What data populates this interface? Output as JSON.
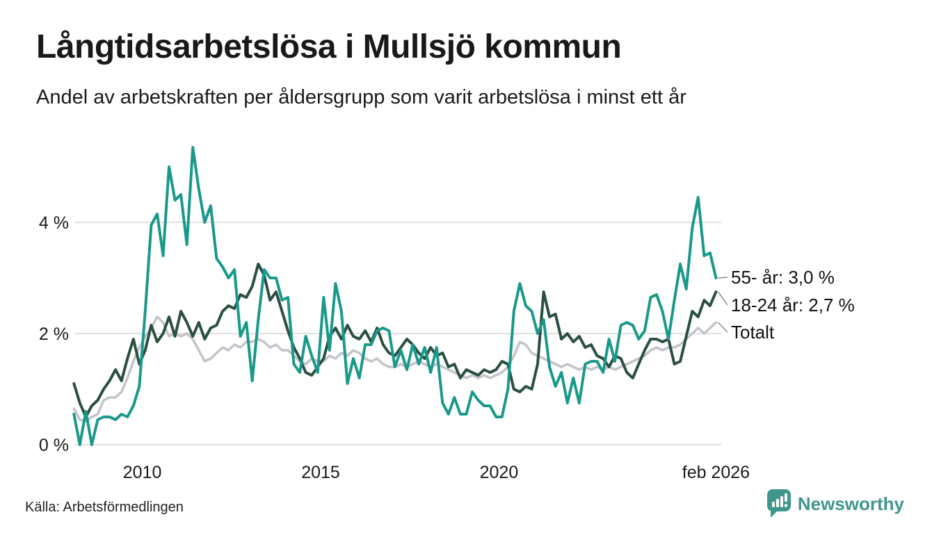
{
  "header": {
    "title": "Långtidsarbetslösa i Mullsjö kommun",
    "subtitle": "Andel av arbetskraften per åldersgrupp som varit arbetslösa i minst ett år"
  },
  "footer": {
    "source": "Källa: Arbetsförmedlingen",
    "brand": "Newsworthy",
    "brand_color": "#3f968d",
    "brand_icon": "newsworthy-speech-bubble-bar-chart-icon"
  },
  "chart_data": {
    "type": "line",
    "title": "Långtidsarbetslösa i Mullsjö kommun",
    "subtitle": "Andel av arbetskraften per åldersgrupp som varit arbetslösa i minst ett år",
    "xlabel": "",
    "ylabel": "",
    "x_unit": "decimal year (monthly data, ~2-month sampling)",
    "y_unit": "% av arbetskraften",
    "grid": true,
    "grid_color": "#e0e0e0",
    "legend_position": "right-end-labels",
    "xlim": [
      2008.0,
      2026.25
    ],
    "ylim": [
      0,
      5.5
    ],
    "yticks": [
      {
        "value": 0,
        "label": "0 %"
      },
      {
        "value": 2,
        "label": "2 %"
      },
      {
        "value": 4,
        "label": "4 %"
      }
    ],
    "xticks": [
      {
        "value": 2010,
        "label": "2010"
      },
      {
        "value": 2015,
        "label": "2015"
      },
      {
        "value": 2020,
        "label": "2020"
      },
      {
        "value": 2026.083,
        "label": "feb 2026"
      }
    ],
    "x": [
      2008.083,
      2008.25,
      2008.417,
      2008.583,
      2008.75,
      2008.917,
      2009.083,
      2009.25,
      2009.417,
      2009.583,
      2009.75,
      2009.917,
      2010.083,
      2010.25,
      2010.417,
      2010.583,
      2010.75,
      2010.917,
      2011.083,
      2011.25,
      2011.417,
      2011.583,
      2011.75,
      2011.917,
      2012.083,
      2012.25,
      2012.417,
      2012.583,
      2012.75,
      2012.917,
      2013.083,
      2013.25,
      2013.417,
      2013.583,
      2013.75,
      2013.917,
      2014.083,
      2014.25,
      2014.417,
      2014.583,
      2014.75,
      2014.917,
      2015.083,
      2015.25,
      2015.417,
      2015.583,
      2015.75,
      2015.917,
      2016.083,
      2016.25,
      2016.417,
      2016.583,
      2016.75,
      2016.917,
      2017.083,
      2017.25,
      2017.417,
      2017.583,
      2017.75,
      2017.917,
      2018.083,
      2018.25,
      2018.417,
      2018.583,
      2018.75,
      2018.917,
      2019.083,
      2019.25,
      2019.417,
      2019.583,
      2019.75,
      2019.917,
      2020.083,
      2020.25,
      2020.417,
      2020.583,
      2020.75,
      2020.917,
      2021.083,
      2021.25,
      2021.417,
      2021.583,
      2021.75,
      2021.917,
      2022.083,
      2022.25,
      2022.417,
      2022.583,
      2022.75,
      2022.917,
      2023.083,
      2023.25,
      2023.417,
      2023.583,
      2023.75,
      2023.917,
      2024.083,
      2024.25,
      2024.417,
      2024.583,
      2024.75,
      2024.917,
      2025.083,
      2025.25,
      2025.417,
      2025.583,
      2025.75,
      2025.917,
      2026.083
    ],
    "series": [
      {
        "id": "55",
        "name": "55- år",
        "end_label": "55- år: 3,0 %",
        "last_value": 3.0,
        "color": "#1a998a",
        "width": 4,
        "values": [
          0.55,
          0.0,
          0.6,
          0.0,
          0.45,
          0.5,
          0.5,
          0.45,
          0.55,
          0.5,
          0.7,
          1.05,
          2.4,
          3.95,
          4.15,
          3.4,
          5.0,
          4.4,
          4.5,
          3.6,
          5.35,
          4.6,
          4.0,
          4.3,
          3.35,
          3.2,
          3.0,
          3.15,
          1.95,
          2.2,
          1.15,
          2.25,
          3.15,
          3.0,
          3.0,
          2.6,
          2.65,
          1.45,
          1.3,
          1.95,
          1.6,
          1.3,
          2.65,
          1.7,
          2.9,
          2.4,
          1.1,
          1.55,
          1.2,
          1.8,
          1.8,
          2.05,
          2.1,
          2.05,
          1.4,
          1.7,
          1.35,
          1.8,
          1.45,
          1.75,
          1.3,
          1.75,
          0.75,
          0.55,
          0.85,
          0.55,
          0.55,
          0.95,
          0.8,
          0.7,
          0.7,
          0.5,
          0.5,
          1.0,
          2.4,
          2.9,
          2.5,
          2.4,
          2.0,
          2.25,
          1.4,
          1.05,
          1.3,
          0.75,
          1.2,
          0.75,
          1.45,
          1.5,
          1.5,
          1.3,
          1.9,
          1.5,
          2.15,
          2.2,
          2.15,
          1.9,
          2.05,
          2.65,
          2.7,
          2.4,
          1.9,
          2.6,
          3.25,
          2.8,
          3.9,
          4.45,
          3.4,
          3.45,
          3.0
        ]
      },
      {
        "id": "1824",
        "name": "18-24 år",
        "end_label": "18-24 år: 2,7 %",
        "last_value": 2.7,
        "color": "#2c4f43",
        "width": 4,
        "values": [
          1.1,
          0.75,
          0.5,
          0.7,
          0.8,
          1.0,
          1.15,
          1.35,
          1.15,
          1.55,
          1.9,
          1.45,
          1.7,
          2.15,
          1.85,
          2.0,
          2.3,
          1.95,
          2.4,
          2.2,
          1.95,
          2.2,
          1.9,
          2.1,
          2.15,
          2.4,
          2.5,
          2.45,
          2.7,
          2.65,
          2.85,
          3.25,
          3.05,
          2.6,
          2.75,
          2.4,
          2.05,
          1.75,
          1.55,
          1.3,
          1.25,
          1.4,
          1.55,
          1.95,
          2.1,
          1.9,
          2.15,
          1.95,
          1.9,
          2.05,
          1.85,
          2.1,
          1.8,
          1.65,
          1.6,
          1.75,
          1.9,
          1.8,
          1.65,
          1.55,
          1.75,
          1.6,
          1.65,
          1.4,
          1.45,
          1.2,
          1.35,
          1.3,
          1.25,
          1.35,
          1.3,
          1.35,
          1.5,
          1.45,
          1.0,
          0.95,
          1.05,
          1.0,
          1.45,
          2.75,
          2.3,
          2.35,
          1.9,
          2.0,
          1.85,
          1.95,
          1.75,
          1.8,
          1.6,
          1.55,
          1.4,
          1.6,
          1.55,
          1.3,
          1.2,
          1.45,
          1.7,
          1.9,
          1.9,
          1.85,
          1.9,
          1.45,
          1.5,
          1.95,
          2.4,
          2.3,
          2.6,
          2.5,
          2.75
        ]
      },
      {
        "id": "totalt",
        "name": "Totalt",
        "end_label": "Totalt",
        "last_value": 2.2,
        "color": "#c3c3cb",
        "width": 3.5,
        "values": [
          0.65,
          0.45,
          0.42,
          0.5,
          0.55,
          0.8,
          0.85,
          0.85,
          0.95,
          1.2,
          1.5,
          1.75,
          1.95,
          2.1,
          2.3,
          2.2,
          1.95,
          2.0,
          1.95,
          2.0,
          1.9,
          1.7,
          1.5,
          1.55,
          1.65,
          1.75,
          1.7,
          1.8,
          1.75,
          1.85,
          1.85,
          1.9,
          1.85,
          1.75,
          1.8,
          1.7,
          1.7,
          1.6,
          1.5,
          1.45,
          1.55,
          1.5,
          1.5,
          1.6,
          1.55,
          1.65,
          1.6,
          1.7,
          1.65,
          1.55,
          1.5,
          1.55,
          1.45,
          1.4,
          1.4,
          1.45,
          1.4,
          1.45,
          1.5,
          1.45,
          1.4,
          1.45,
          1.4,
          1.35,
          1.3,
          1.25,
          1.2,
          1.25,
          1.2,
          1.25,
          1.2,
          1.25,
          1.3,
          1.4,
          1.6,
          1.85,
          1.8,
          1.65,
          1.6,
          1.55,
          1.5,
          1.45,
          1.4,
          1.45,
          1.4,
          1.35,
          1.4,
          1.35,
          1.4,
          1.35,
          1.4,
          1.35,
          1.4,
          1.45,
          1.5,
          1.55,
          1.6,
          1.7,
          1.75,
          1.7,
          1.75,
          1.75,
          1.8,
          1.9,
          2.0,
          2.1,
          2.0,
          2.1,
          2.2
        ]
      }
    ]
  }
}
